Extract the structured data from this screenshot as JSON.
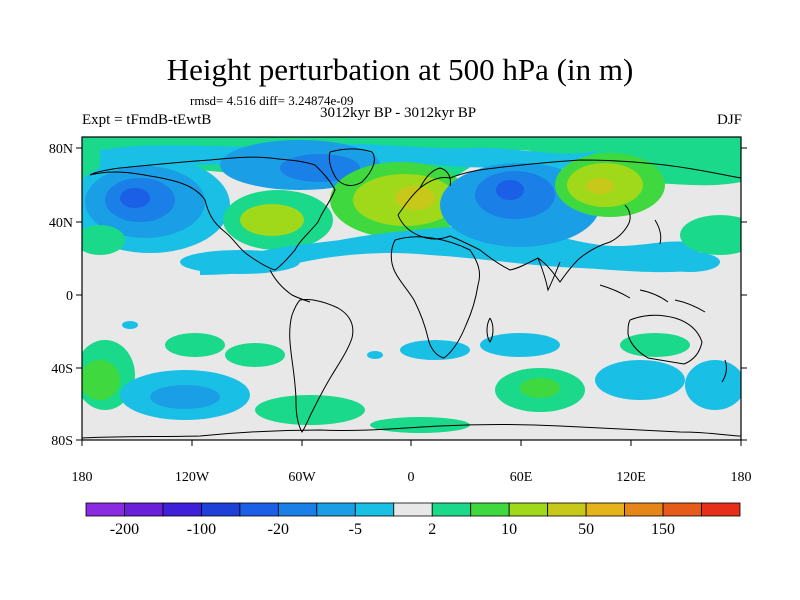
{
  "title": "Height perturbation at 500 hPa (in m)",
  "stats": "rmsd= 4.516 diff= 3.24874e-09",
  "period": "3012kyr BP - 3012kyr BP",
  "experiment": "Expt = tFmdB-tEwtB",
  "season": "DJF",
  "lat_ticks": [
    "80N",
    "40N",
    "0",
    "40S",
    "80S"
  ],
  "lon_ticks": [
    "180",
    "120W",
    "60W",
    "0",
    "60E",
    "120E",
    "180"
  ],
  "colorbar": {
    "colors": [
      "#8a2be2",
      "#6a1fd9",
      "#3f1fd9",
      "#1f3fd9",
      "#1a5fe6",
      "#1a7fe6",
      "#1a9fe6",
      "#1abfe6",
      "#e8e8e8",
      "#1ad98a",
      "#3fd93f",
      "#9fd91a",
      "#c8c81a",
      "#e6b41a",
      "#e6861a",
      "#e65a1a",
      "#e62e1a"
    ],
    "labels": [
      "-200",
      "-100",
      "-20",
      "-5",
      "2",
      "10",
      "50",
      "150"
    ]
  },
  "colors": {
    "background_field": "#e8e8e8",
    "coast": "#000000"
  }
}
